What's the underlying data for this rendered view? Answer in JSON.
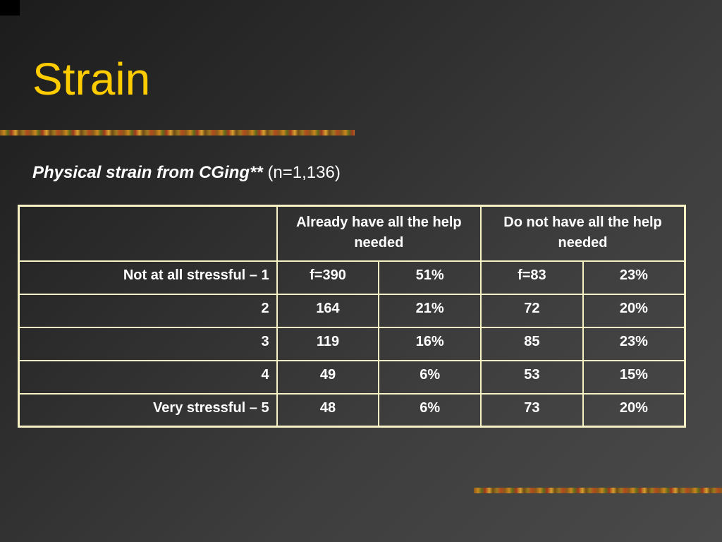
{
  "slide": {
    "title": "Strain",
    "subtitle": {
      "main": "Physical strain from CGing**",
      "sample": "(n=1,136)"
    },
    "colors": {
      "title": "#ffcc00",
      "table_border": "#f6f2c6",
      "text": "#ffffff"
    }
  },
  "table": {
    "corner_header": "",
    "headers": [
      "Already have all the help needed",
      "Do not have all the help needed"
    ],
    "rows": [
      {
        "label": "Not at all stressful – 1",
        "cells": [
          "f=390",
          "51%",
          "f=83",
          "23%"
        ]
      },
      {
        "label": "2",
        "cells": [
          "164",
          "21%",
          "72",
          "20%"
        ]
      },
      {
        "label": "3",
        "cells": [
          "119",
          "16%",
          "85",
          "23%"
        ]
      },
      {
        "label": "4",
        "cells": [
          "49",
          "6%",
          "53",
          "15%"
        ]
      },
      {
        "label": "Very stressful – 5",
        "cells": [
          "48",
          "6%",
          "73",
          "20%"
        ]
      }
    ]
  }
}
